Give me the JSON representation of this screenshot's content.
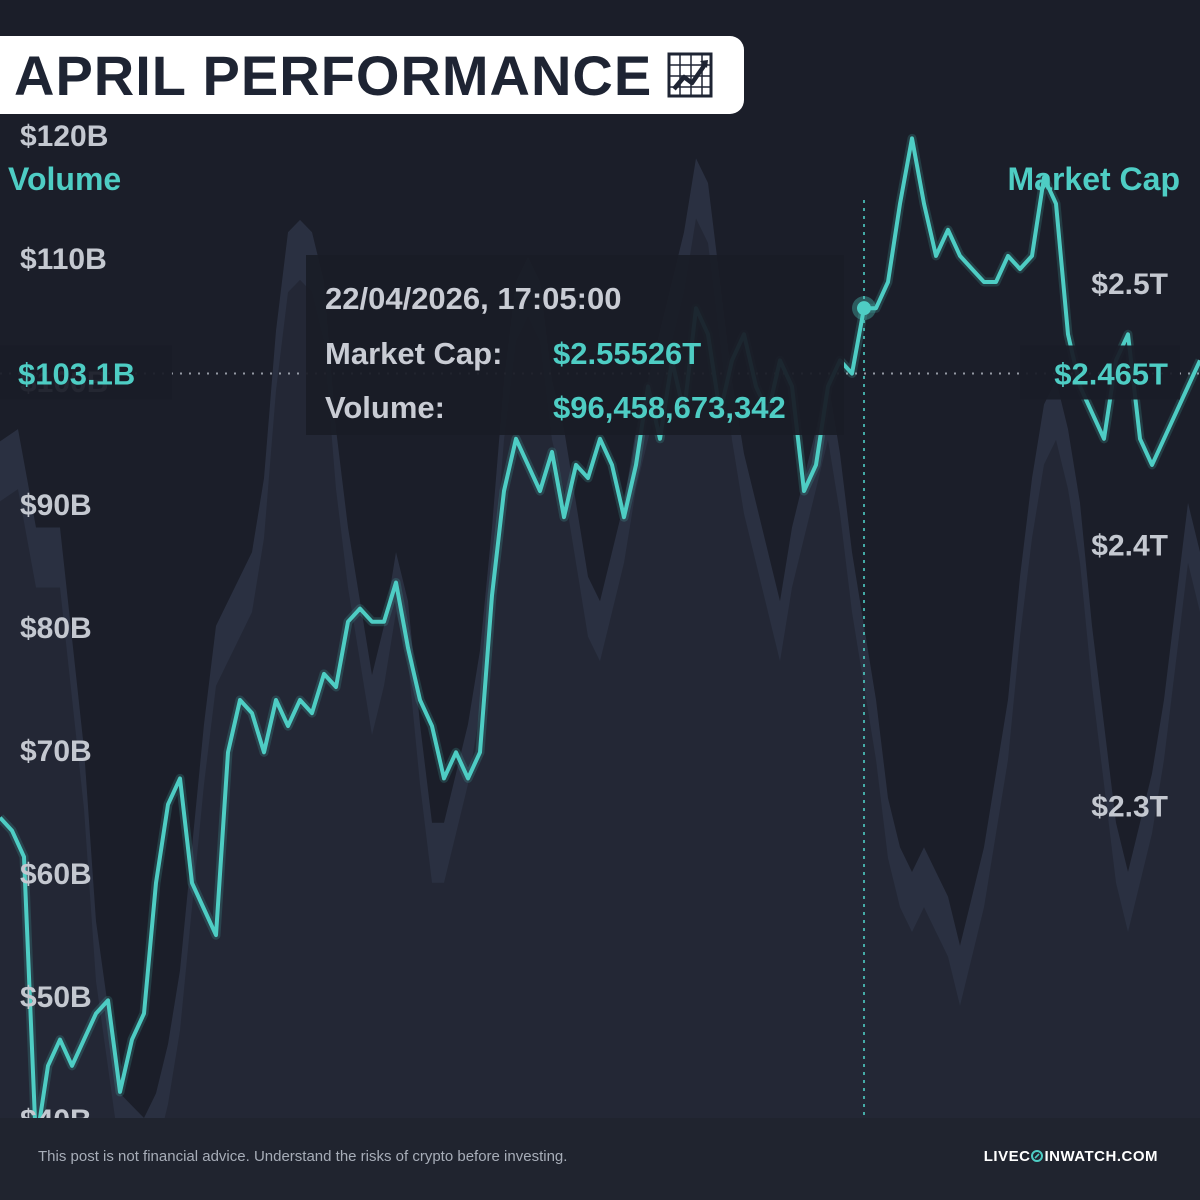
{
  "title": "APRIL PERFORMANCE",
  "icons": {
    "title_icon": "line-chart-icon",
    "brand_coin": "coin-icon"
  },
  "colors": {
    "accent": "#4ecdc4",
    "background": "#1b1e29",
    "volume_fill": "#2b3142"
  },
  "footer": {
    "disclaimer": "This post is not financial advice. Understand the risks of crypto before investing.",
    "brand_prefix": "LIVEC",
    "brand_suffix": "INWATCH.COM"
  },
  "chart_data": {
    "type": "line",
    "left_axis_title": "Volume",
    "right_axis_title": "Market Cap",
    "left_axis": {
      "ticks": [
        40,
        50,
        60,
        70,
        80,
        90,
        100,
        110,
        120
      ],
      "tick_labels": [
        "$40B",
        "$50B",
        "$60B",
        "$70B",
        "$80B",
        "$90B",
        "$100B",
        "$110B",
        "$120B"
      ],
      "range": [
        40,
        126
      ]
    },
    "right_axis": {
      "ticks": [
        2.3,
        2.4,
        2.5
      ],
      "tick_labels": [
        "$2.3T",
        "$2.4T",
        "$2.5T"
      ],
      "range": [
        2.18,
        2.585
      ]
    },
    "volume_series": {
      "name": "Volume",
      "unit": "$B",
      "x": [
        0,
        1.5,
        3,
        5,
        7,
        8,
        10,
        12,
        13,
        14,
        15,
        16,
        17,
        18,
        19,
        20,
        21,
        22,
        23,
        24,
        25,
        26,
        27,
        28,
        29,
        30,
        31,
        32,
        33,
        34,
        35,
        36,
        37,
        38,
        39,
        40,
        41,
        42,
        43,
        44,
        45,
        46,
        47,
        48,
        49,
        50,
        51,
        52,
        53,
        54,
        55,
        56,
        57,
        58,
        59,
        60,
        61,
        62,
        63,
        64,
        65,
        66,
        67,
        68,
        69,
        70,
        71,
        72,
        73,
        74,
        75,
        76,
        77,
        78,
        79,
        80,
        81,
        82,
        83,
        84,
        85,
        86,
        87,
        88,
        89,
        90,
        91,
        92,
        93,
        94,
        95,
        96,
        97,
        98,
        99,
        100
      ],
      "values": [
        95,
        96,
        88,
        88,
        70,
        56,
        42,
        40,
        42,
        46,
        52,
        62,
        72,
        80,
        82,
        84,
        86,
        92,
        104,
        112,
        113,
        112,
        108,
        96,
        88,
        82,
        76,
        80,
        86,
        82,
        72,
        64,
        64,
        68,
        72,
        78,
        88,
        100,
        108,
        110,
        108,
        100,
        96,
        90,
        84,
        82,
        86,
        90,
        96,
        100,
        104,
        108,
        112,
        118,
        116,
        108,
        100,
        94,
        90,
        86,
        82,
        88,
        92,
        96,
        100,
        94,
        86,
        80,
        74,
        66,
        62,
        60,
        62,
        60,
        58,
        54,
        58,
        62,
        68,
        74,
        84,
        92,
        98,
        100,
        96,
        90,
        80,
        72,
        64,
        60,
        64,
        68,
        74,
        82,
        90,
        86
      ]
    },
    "market_cap_series": {
      "name": "Market Cap",
      "unit": "$T",
      "x": [
        0,
        1,
        2,
        3,
        4,
        5,
        6,
        7,
        8,
        9,
        10,
        11,
        12,
        13,
        14,
        15,
        16,
        17,
        18,
        19,
        20,
        21,
        22,
        23,
        24,
        25,
        26,
        27,
        28,
        29,
        30,
        31,
        32,
        33,
        34,
        35,
        36,
        37,
        38,
        39,
        40,
        41,
        42,
        43,
        44,
        45,
        46,
        47,
        48,
        49,
        50,
        51,
        52,
        53,
        54,
        55,
        56,
        57,
        58,
        59,
        60,
        61,
        62,
        63,
        64,
        65,
        66,
        67,
        68,
        69,
        70,
        71,
        72,
        73,
        74,
        75,
        76,
        77,
        78,
        79,
        80,
        81,
        82,
        83,
        84,
        85,
        86,
        87,
        88,
        89,
        90,
        91,
        92,
        93,
        94,
        95,
        96,
        97,
        98,
        99,
        100
      ],
      "values": [
        2.295,
        2.29,
        2.28,
        2.17,
        2.2,
        2.21,
        2.2,
        2.21,
        2.22,
        2.225,
        2.19,
        2.21,
        2.22,
        2.27,
        2.3,
        2.31,
        2.27,
        2.26,
        2.25,
        2.32,
        2.34,
        2.335,
        2.32,
        2.34,
        2.33,
        2.34,
        2.335,
        2.35,
        2.345,
        2.37,
        2.375,
        2.37,
        2.37,
        2.385,
        2.36,
        2.34,
        2.33,
        2.31,
        2.32,
        2.31,
        2.32,
        2.38,
        2.42,
        2.44,
        2.43,
        2.42,
        2.435,
        2.41,
        2.43,
        2.425,
        2.44,
        2.43,
        2.41,
        2.43,
        2.46,
        2.44,
        2.47,
        2.45,
        2.49,
        2.48,
        2.45,
        2.47,
        2.48,
        2.46,
        2.45,
        2.47,
        2.46,
        2.42,
        2.43,
        2.46,
        2.47,
        2.465,
        2.49,
        2.49,
        2.5,
        2.53,
        2.555,
        2.53,
        2.51,
        2.52,
        2.51,
        2.505,
        2.5,
        2.5,
        2.51,
        2.505,
        2.51,
        2.54,
        2.53,
        2.48,
        2.46,
        2.45,
        2.44,
        2.47,
        2.48,
        2.44,
        2.43,
        2.44,
        2.45,
        2.46,
        2.47
      ]
    },
    "cursor": {
      "x": 72,
      "date": "22/04/2026, 17:05:00"
    },
    "crosshair": {
      "volume_label": "$103.1B",
      "market_cap_label": "$2.465T",
      "market_cap_value": 2.465
    },
    "tooltip": {
      "datetime": "22/04/2026, 17:05:00",
      "market_cap_label": "Market Cap:",
      "market_cap_value": "$2.55526T",
      "volume_label": "Volume:",
      "volume_value": "$96,458,673,342"
    },
    "grid": false,
    "legend": "none"
  }
}
